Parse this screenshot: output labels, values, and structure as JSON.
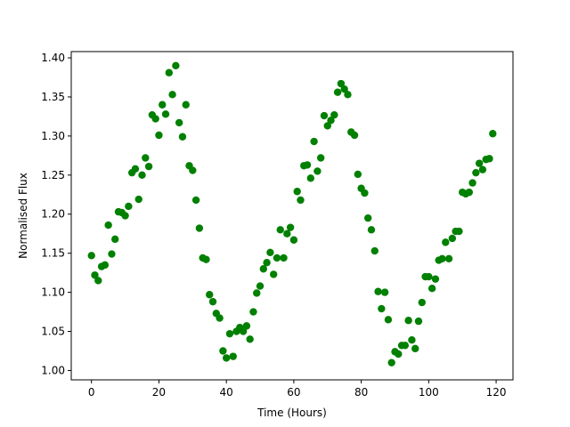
{
  "chart_data": {
    "type": "scatter",
    "title": "",
    "xlabel": "Time (Hours)",
    "ylabel": "Normalised Flux",
    "xlim": [
      -6,
      125
    ],
    "ylim": [
      0.988,
      1.408
    ],
    "x_ticks": [
      0,
      20,
      40,
      60,
      80,
      100,
      120
    ],
    "y_ticks": [
      1.0,
      1.05,
      1.1,
      1.15,
      1.2,
      1.25,
      1.3,
      1.35,
      1.4
    ],
    "y_tick_labels": [
      "1.00",
      "1.05",
      "1.10",
      "1.15",
      "1.20",
      "1.25",
      "1.30",
      "1.35",
      "1.40"
    ],
    "grid": false,
    "marker_color": "#008000",
    "series": [
      {
        "points": [
          [
            0,
            1.147
          ],
          [
            1,
            1.122
          ],
          [
            2,
            1.115
          ],
          [
            3,
            1.133
          ],
          [
            4,
            1.135
          ],
          [
            5,
            1.186
          ],
          [
            6,
            1.149
          ],
          [
            7,
            1.168
          ],
          [
            8,
            1.203
          ],
          [
            9,
            1.202
          ],
          [
            10,
            1.198
          ],
          [
            11,
            1.21
          ],
          [
            12,
            1.253
          ],
          [
            13,
            1.258
          ],
          [
            14,
            1.219
          ],
          [
            15,
            1.25
          ],
          [
            16,
            1.272
          ],
          [
            17,
            1.261
          ],
          [
            18,
            1.327
          ],
          [
            19,
            1.322
          ],
          [
            20,
            1.301
          ],
          [
            21,
            1.34
          ],
          [
            22,
            1.328
          ],
          [
            23,
            1.381
          ],
          [
            24,
            1.353
          ],
          [
            25,
            1.39
          ],
          [
            26,
            1.317
          ],
          [
            27,
            1.299
          ],
          [
            28,
            1.34
          ],
          [
            29,
            1.262
          ],
          [
            30,
            1.256
          ],
          [
            31,
            1.218
          ],
          [
            32,
            1.182
          ],
          [
            33,
            1.144
          ],
          [
            34,
            1.142
          ],
          [
            35,
            1.097
          ],
          [
            36,
            1.088
          ],
          [
            37,
            1.073
          ],
          [
            38,
            1.067
          ],
          [
            39,
            1.025
          ],
          [
            40,
            1.016
          ],
          [
            41,
            1.047
          ],
          [
            42,
            1.018
          ],
          [
            43,
            1.05
          ],
          [
            44,
            1.055
          ],
          [
            45,
            1.05
          ],
          [
            46,
            1.057
          ],
          [
            47,
            1.04
          ],
          [
            48,
            1.075
          ],
          [
            49,
            1.099
          ],
          [
            50,
            1.108
          ],
          [
            51,
            1.13
          ],
          [
            52,
            1.138
          ],
          [
            53,
            1.151
          ],
          [
            54,
            1.123
          ],
          [
            55,
            1.144
          ],
          [
            56,
            1.18
          ],
          [
            57,
            1.144
          ],
          [
            58,
            1.175
          ],
          [
            59,
            1.183
          ],
          [
            60,
            1.167
          ],
          [
            61,
            1.229
          ],
          [
            62,
            1.218
          ],
          [
            63,
            1.262
          ],
          [
            64,
            1.263
          ],
          [
            65,
            1.246
          ],
          [
            66,
            1.293
          ],
          [
            67,
            1.255
          ],
          [
            68,
            1.272
          ],
          [
            69,
            1.326
          ],
          [
            70,
            1.313
          ],
          [
            71,
            1.32
          ],
          [
            72,
            1.327
          ],
          [
            73,
            1.356
          ],
          [
            74,
            1.367
          ],
          [
            75,
            1.36
          ],
          [
            76,
            1.353
          ],
          [
            77,
            1.305
          ],
          [
            78,
            1.301
          ],
          [
            79,
            1.251
          ],
          [
            80,
            1.233
          ],
          [
            81,
            1.227
          ],
          [
            82,
            1.195
          ],
          [
            83,
            1.18
          ],
          [
            84,
            1.153
          ],
          [
            85,
            1.101
          ],
          [
            86,
            1.079
          ],
          [
            87,
            1.1
          ],
          [
            88,
            1.065
          ],
          [
            89,
            1.01
          ],
          [
            90,
            1.024
          ],
          [
            91,
            1.021
          ],
          [
            92,
            1.032
          ],
          [
            93,
            1.032
          ],
          [
            94,
            1.064
          ],
          [
            95,
            1.039
          ],
          [
            96,
            1.028
          ],
          [
            97,
            1.063
          ],
          [
            98,
            1.087
          ],
          [
            99,
            1.12
          ],
          [
            100,
            1.12
          ],
          [
            101,
            1.105
          ],
          [
            102,
            1.117
          ],
          [
            103,
            1.141
          ],
          [
            104,
            1.143
          ],
          [
            105,
            1.164
          ],
          [
            106,
            1.143
          ],
          [
            107,
            1.169
          ],
          [
            108,
            1.178
          ],
          [
            109,
            1.178
          ],
          [
            110,
            1.228
          ],
          [
            111,
            1.226
          ],
          [
            112,
            1.228
          ],
          [
            113,
            1.24
          ],
          [
            114,
            1.253
          ],
          [
            115,
            1.265
          ],
          [
            116,
            1.257
          ],
          [
            117,
            1.27
          ],
          [
            118,
            1.271
          ],
          [
            119,
            1.303
          ]
        ]
      }
    ]
  }
}
